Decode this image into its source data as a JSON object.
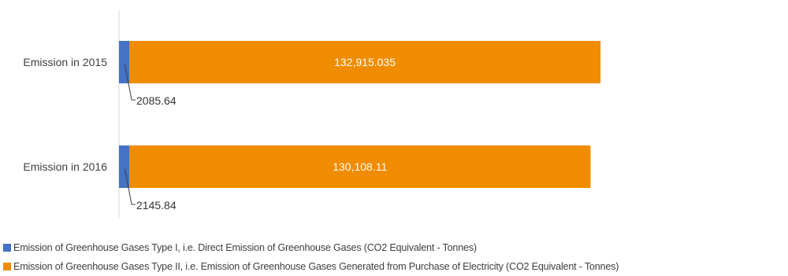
{
  "chart_data": {
    "type": "bar",
    "orientation": "horizontal",
    "stacked": true,
    "categories": [
      "Emission in 2015",
      "Emission in 2016"
    ],
    "series": [
      {
        "name": "Emission of Greenhouse Gases Type I, i.e. Direct Emission of Greenhouse Gases (CO2 Equivalent - Tonnes)",
        "color": "#4472c4",
        "values": [
          2085.64,
          2145.84
        ],
        "labels": [
          "2085.64",
          "2145.84"
        ]
      },
      {
        "name": "Emission of Greenhouse Gases Type II, i.e. Emission of Greenhouse Gases Generated from Purchase of Electricity (CO2 Equivalent - Tonnes)",
        "color": "#f08c00",
        "values": [
          132915.035,
          130108.11
        ],
        "labels": [
          "132,915.035",
          "130,108.11"
        ]
      }
    ],
    "xlim": [
      0,
      155000
    ],
    "grid": false,
    "legend_position": "bottom-left"
  }
}
